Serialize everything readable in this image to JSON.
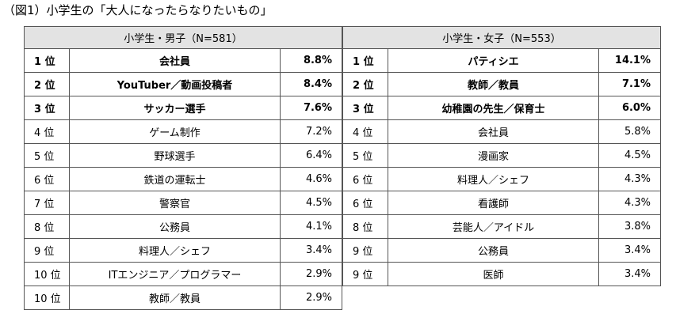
{
  "caption": "（図1）小学生の「大人になったらなりたいもの」",
  "boys": {
    "header": "小学生・男子（N=581）",
    "rows": [
      {
        "rank": "1 位",
        "name": "会社員",
        "pct": "8.8%",
        "top": true
      },
      {
        "rank": "2 位",
        "name": "YouTuber／動画投稿者",
        "pct": "8.4%",
        "top": true
      },
      {
        "rank": "3 位",
        "name": "サッカー選手",
        "pct": "7.6%",
        "top": true
      },
      {
        "rank": "4 位",
        "name": "ゲーム制作",
        "pct": "7.2%",
        "top": false
      },
      {
        "rank": "5 位",
        "name": "野球選手",
        "pct": "6.4%",
        "top": false
      },
      {
        "rank": "6 位",
        "name": "鉄道の運転士",
        "pct": "4.6%",
        "top": false
      },
      {
        "rank": "7 位",
        "name": "警察官",
        "pct": "4.5%",
        "top": false
      },
      {
        "rank": "8 位",
        "name": "公務員",
        "pct": "4.1%",
        "top": false
      },
      {
        "rank": "9 位",
        "name": "料理人／シェフ",
        "pct": "3.4%",
        "top": false
      },
      {
        "rank": "10 位",
        "name": "ITエンジニア／プログラマー",
        "pct": "2.9%",
        "top": false
      },
      {
        "rank": "10 位",
        "name": "教師／教員",
        "pct": "2.9%",
        "top": false
      }
    ]
  },
  "girls": {
    "header": "小学生・女子（N=553）",
    "rows": [
      {
        "rank": "1 位",
        "name": "パティシエ",
        "pct": "14.1%",
        "top": true
      },
      {
        "rank": "2 位",
        "name": "教師／教員",
        "pct": "7.1%",
        "top": true
      },
      {
        "rank": "3 位",
        "name": "幼稚園の先生／保育士",
        "pct": "6.0%",
        "top": true
      },
      {
        "rank": "4 位",
        "name": "会社員",
        "pct": "5.8%",
        "top": false
      },
      {
        "rank": "5 位",
        "name": "漫画家",
        "pct": "4.5%",
        "top": false
      },
      {
        "rank": "6 位",
        "name": "料理人／シェフ",
        "pct": "4.3%",
        "top": false
      },
      {
        "rank": "6 位",
        "name": "看護師",
        "pct": "4.3%",
        "top": false
      },
      {
        "rank": "8 位",
        "name": "芸能人／アイドル",
        "pct": "3.8%",
        "top": false
      },
      {
        "rank": "9 位",
        "name": "公務員",
        "pct": "3.4%",
        "top": false
      },
      {
        "rank": "9 位",
        "name": "医師",
        "pct": "3.4%",
        "top": false
      }
    ]
  }
}
